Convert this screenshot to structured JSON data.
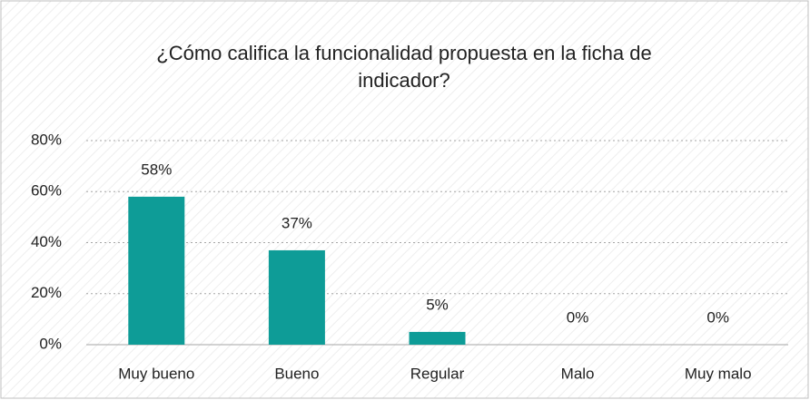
{
  "chart_data": {
    "type": "bar",
    "title": "¿Cómo califica la funcionalidad propuesta en la ficha de indicador?",
    "categories": [
      "Muy bueno",
      "Bueno",
      "Regular",
      "Malo",
      "Muy malo"
    ],
    "values": [
      58,
      37,
      5,
      0,
      0
    ],
    "value_labels": [
      "58%",
      "37%",
      "5%",
      "0%",
      "0%"
    ],
    "color": "#0e9c97",
    "ylim": [
      0,
      80
    ],
    "yticks": [
      {
        "value": 0,
        "label": "0%"
      },
      {
        "value": 20,
        "label": "20%"
      },
      {
        "value": 40,
        "label": "40%"
      },
      {
        "value": 60,
        "label": "60%"
      },
      {
        "value": 80,
        "label": "80%"
      }
    ],
    "grid": true
  }
}
